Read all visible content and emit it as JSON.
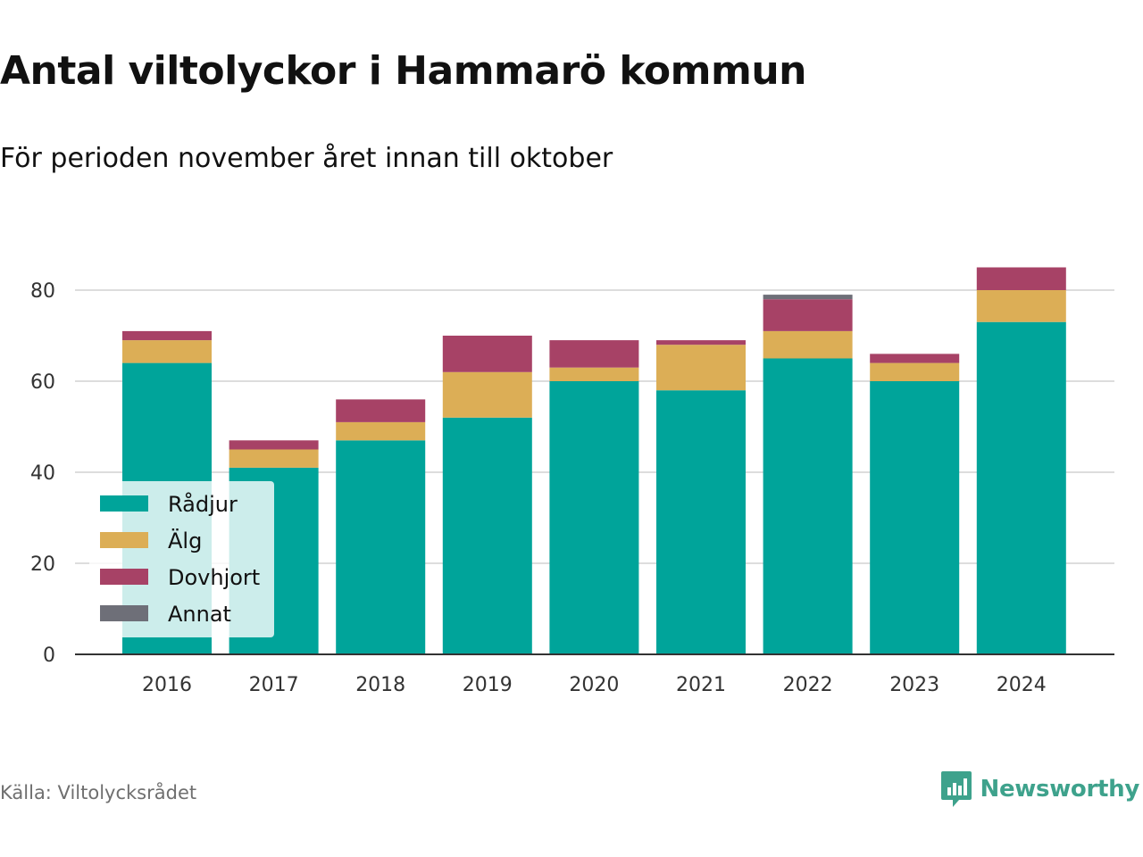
{
  "chart": {
    "title": "Antal viltolyckor i Hammarö kommun",
    "subtitle": "För perioden november året innan till oktober",
    "source": "Källa: Viltolycksrådet",
    "brand": "Newsworthy"
  },
  "chart_data": {
    "type": "bar",
    "stacked": true,
    "title": "Antal viltolyckor i Hammarö kommun",
    "subtitle": "För perioden november året innan till oktober",
    "categories": [
      "2016",
      "2017",
      "2018",
      "2019",
      "2020",
      "2021",
      "2022",
      "2023",
      "2024"
    ],
    "series": [
      {
        "name": "Rådjur",
        "color": "#00a49a",
        "values": [
          64,
          41,
          47,
          52,
          60,
          58,
          65,
          60,
          73
        ]
      },
      {
        "name": "Älg",
        "color": "#dcae56",
        "values": [
          5,
          4,
          4,
          10,
          3,
          10,
          6,
          4,
          7
        ]
      },
      {
        "name": "Dovhjort",
        "color": "#a74266",
        "values": [
          2,
          2,
          5,
          8,
          6,
          1,
          7,
          2,
          5
        ]
      },
      {
        "name": "Annat",
        "color": "#6e6f78",
        "values": [
          0,
          0,
          0,
          0,
          0,
          0,
          1,
          0,
          0
        ]
      }
    ],
    "ylim": [
      0,
      90
    ],
    "yticks": [
      0,
      20,
      40,
      60,
      80
    ],
    "xlabel": "",
    "ylabel": "",
    "grid": true,
    "legend_position": "bottom-left"
  }
}
